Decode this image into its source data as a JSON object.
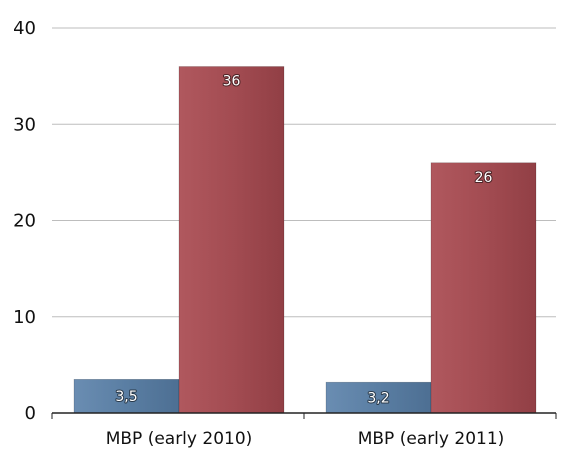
{
  "chart_data": {
    "type": "bar",
    "categories": [
      "MBP (early 2010)",
      "MBP (early 2011)"
    ],
    "series": [
      {
        "color": "#5a7ea3",
        "values": [
          3.5,
          3.2
        ],
        "value_labels": [
          "3,5",
          "3,2"
        ]
      },
      {
        "color": "#a34c52",
        "values": [
          36,
          26
        ],
        "value_labels": [
          "36",
          "26"
        ]
      }
    ],
    "ylim": [
      0,
      40
    ],
    "yticks": [
      0,
      10,
      20,
      30,
      40
    ],
    "ytick_labels": [
      "0",
      "10",
      "20",
      "30",
      "40"
    ],
    "grid": true,
    "legend": "none"
  }
}
